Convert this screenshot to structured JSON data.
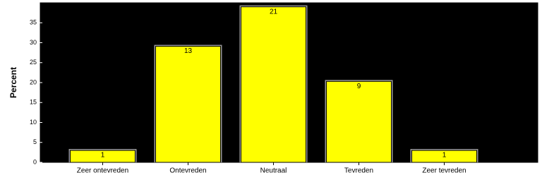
{
  "chart_data": {
    "type": "bar",
    "y_label": "Percent",
    "categories": [
      "Zeer ontevreden",
      "Ontevreden",
      "Neutraal",
      "Tevreden",
      "Zeer tevreden"
    ],
    "values": [
      3.0,
      29.1,
      39.0,
      20.3,
      3.0
    ],
    "counts": [
      1,
      13,
      21,
      9,
      1
    ],
    "color": "#ffff00",
    "background": "#000000",
    "ylim": [
      0,
      40
    ],
    "yticks": [
      0,
      5,
      10,
      15,
      20,
      25,
      30,
      35
    ]
  }
}
